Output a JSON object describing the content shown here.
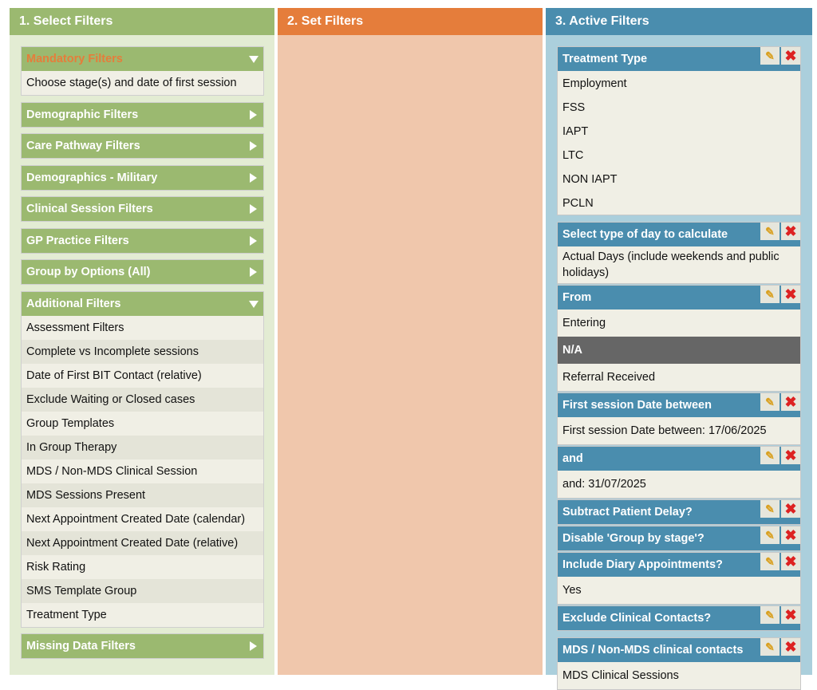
{
  "columns": {
    "select": "1. Select Filters",
    "set": "2. Set Filters",
    "active": "3. Active Filters"
  },
  "select_groups": [
    {
      "label": "Mandatory Filters",
      "expanded": true,
      "items": [
        "Choose stage(s) and date of first session"
      ]
    },
    {
      "label": "Demographic Filters"
    },
    {
      "label": "Care Pathway Filters"
    },
    {
      "label": "Demographics - Military"
    },
    {
      "label": "Clinical Session Filters"
    },
    {
      "label": "GP Practice Filters"
    },
    {
      "label": "Group by Options (All)"
    },
    {
      "label": "Additional Filters",
      "expanded": true,
      "items": [
        "Assessment Filters",
        "Complete vs Incomplete sessions",
        "Date of First BIT Contact (relative)",
        "Exclude Waiting or Closed cases",
        "Group Templates",
        "In Group Therapy",
        "MDS / Non-MDS Clinical Session",
        "MDS Sessions Present",
        "Next Appointment Created Date (calendar)",
        "Next Appointment Created Date (relative)",
        "Risk Rating",
        "SMS Template Group",
        "Treatment Type"
      ]
    },
    {
      "label": "Missing Data Filters"
    }
  ],
  "active_filters": [
    {
      "title": "Treatment Type",
      "values": [
        "Employment",
        "FSS",
        "IAPT",
        "LTC",
        "NON IAPT",
        "PCLN"
      ]
    },
    {
      "title": "Select type of day to calculate",
      "values": [
        "Actual Days (include weekends and public holidays)"
      ]
    },
    {
      "title": "From",
      "values": [
        "Entering",
        "N/A",
        "Referral Received"
      ]
    },
    {
      "title": "First session Date between",
      "values": [
        "First session Date between: 17/06/2025"
      ]
    },
    {
      "title": "and",
      "values": [
        "and: 31/07/2025"
      ]
    },
    {
      "title": "Subtract Patient Delay?",
      "values": []
    },
    {
      "title": "Disable 'Group by stage'?",
      "values": []
    },
    {
      "title": "Include Diary Appointments?",
      "values": [
        "Yes"
      ]
    },
    {
      "title": "Exclude Clinical Contacts?",
      "values": []
    },
    {
      "title": "MDS / Non-MDS clinical contacts",
      "values": [
        "MDS Clinical Sessions"
      ]
    }
  ],
  "icons": {
    "edit": "✎",
    "delete": "✖"
  }
}
